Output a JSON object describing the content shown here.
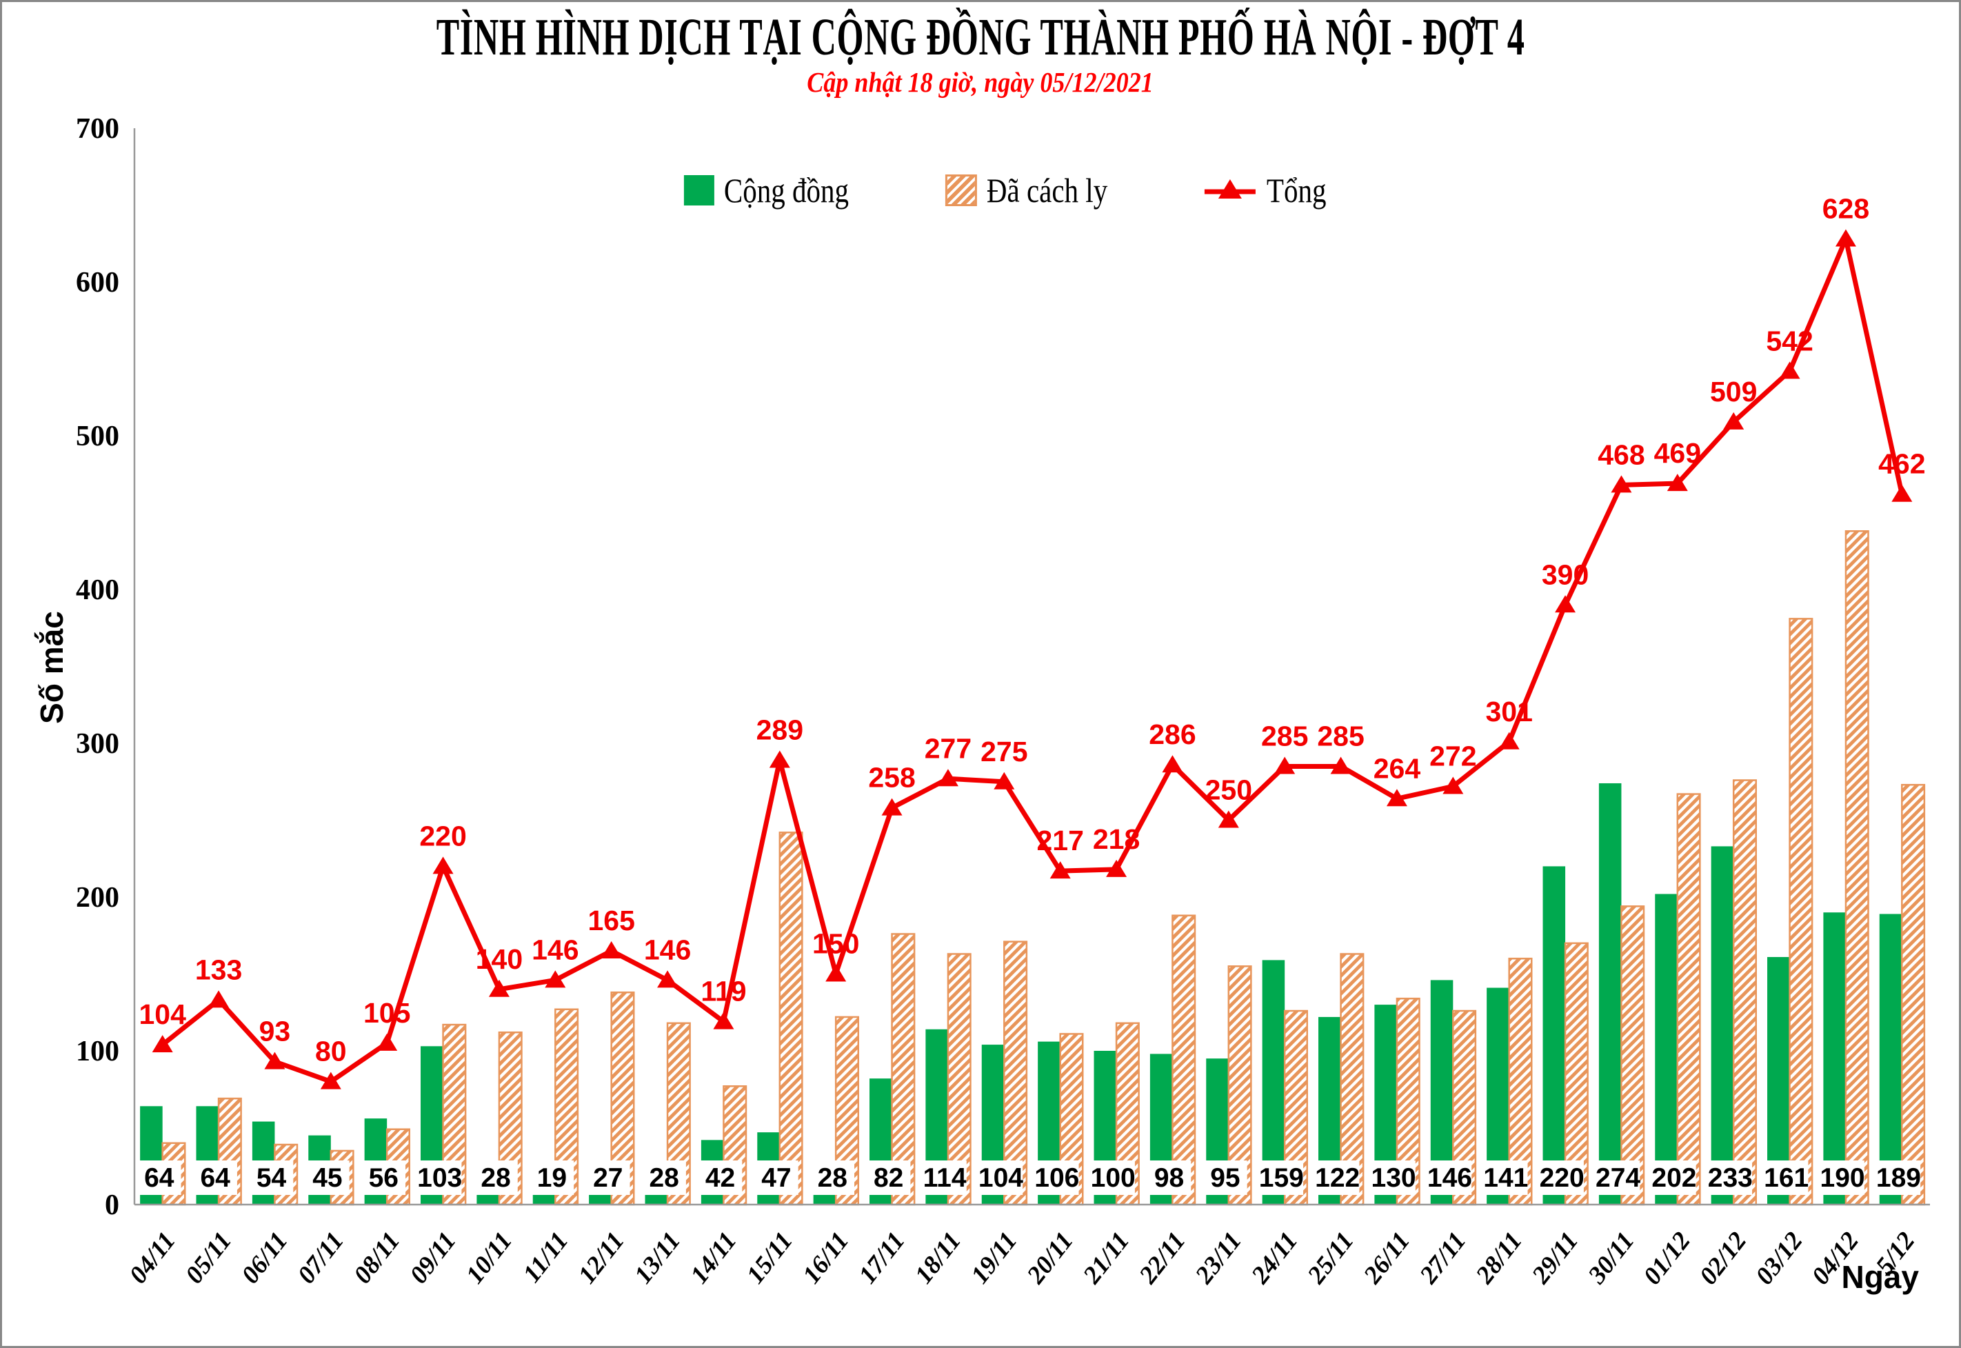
{
  "title": "TÌNH HÌNH DỊCH TẠI CỘNG ĐỒNG THÀNH PHỐ HÀ NỘI - ĐỢT 4",
  "subtitle": "Cập nhật 18 giờ, ngày 05/12/2021",
  "legend": {
    "community": "Cộng đồng",
    "quarantined": "Đã cách ly",
    "total": "Tổng"
  },
  "axes": {
    "y_label": "Số mắc",
    "x_label": "Ngày"
  },
  "colors": {
    "community_green": "#00A94F",
    "quarantined_orange": "#E8955A",
    "total_red": "#F20000",
    "axis_gray": "#999999",
    "label_black": "#000000",
    "label_box_white": "#FFFFFF"
  },
  "chart_data": {
    "type": "combo",
    "categories": [
      "04/11",
      "05/11",
      "06/11",
      "07/11",
      "08/11",
      "09/11",
      "10/11",
      "11/11",
      "12/11",
      "13/11",
      "14/11",
      "15/11",
      "16/11",
      "17/11",
      "18/11",
      "19/11",
      "20/11",
      "21/11",
      "22/11",
      "23/11",
      "24/11",
      "25/11",
      "26/11",
      "27/11",
      "28/11",
      "29/11",
      "30/11",
      "01/12",
      "02/12",
      "03/12",
      "04/12",
      "5/12"
    ],
    "series": [
      {
        "name": "Cộng đồng",
        "type": "bar",
        "color": "#00A94F",
        "values": [
          64,
          64,
          54,
          45,
          56,
          103,
          28,
          19,
          27,
          28,
          42,
          47,
          28,
          82,
          114,
          104,
          106,
          100,
          98,
          95,
          159,
          122,
          130,
          146,
          141,
          220,
          274,
          202,
          233,
          161,
          190,
          189
        ],
        "value_labels_shown": true
      },
      {
        "name": "Đã cách ly",
        "type": "bar",
        "style": "hatched",
        "color": "#E8955A",
        "values": [
          40,
          69,
          39,
          35,
          49,
          117,
          112,
          127,
          138,
          118,
          77,
          242,
          122,
          176,
          163,
          171,
          111,
          118,
          188,
          155,
          126,
          163,
          134,
          126,
          160,
          170,
          194,
          267,
          276,
          381,
          438,
          273
        ],
        "value_labels_shown": false
      },
      {
        "name": "Tổng",
        "type": "line",
        "color": "#F20000",
        "marker": "triangle",
        "values": [
          104,
          133,
          93,
          80,
          105,
          220,
          140,
          146,
          165,
          146,
          119,
          289,
          150,
          258,
          277,
          275,
          217,
          218,
          286,
          250,
          285,
          285,
          264,
          272,
          301,
          390,
          468,
          469,
          509,
          542,
          628,
          462
        ],
        "value_labels_shown": true
      }
    ],
    "xlabel": "Ngày",
    "ylabel": "Số mắc",
    "ylim": [
      0,
      700
    ],
    "ytick_step": 100,
    "grid": false,
    "legend_position": "top"
  }
}
